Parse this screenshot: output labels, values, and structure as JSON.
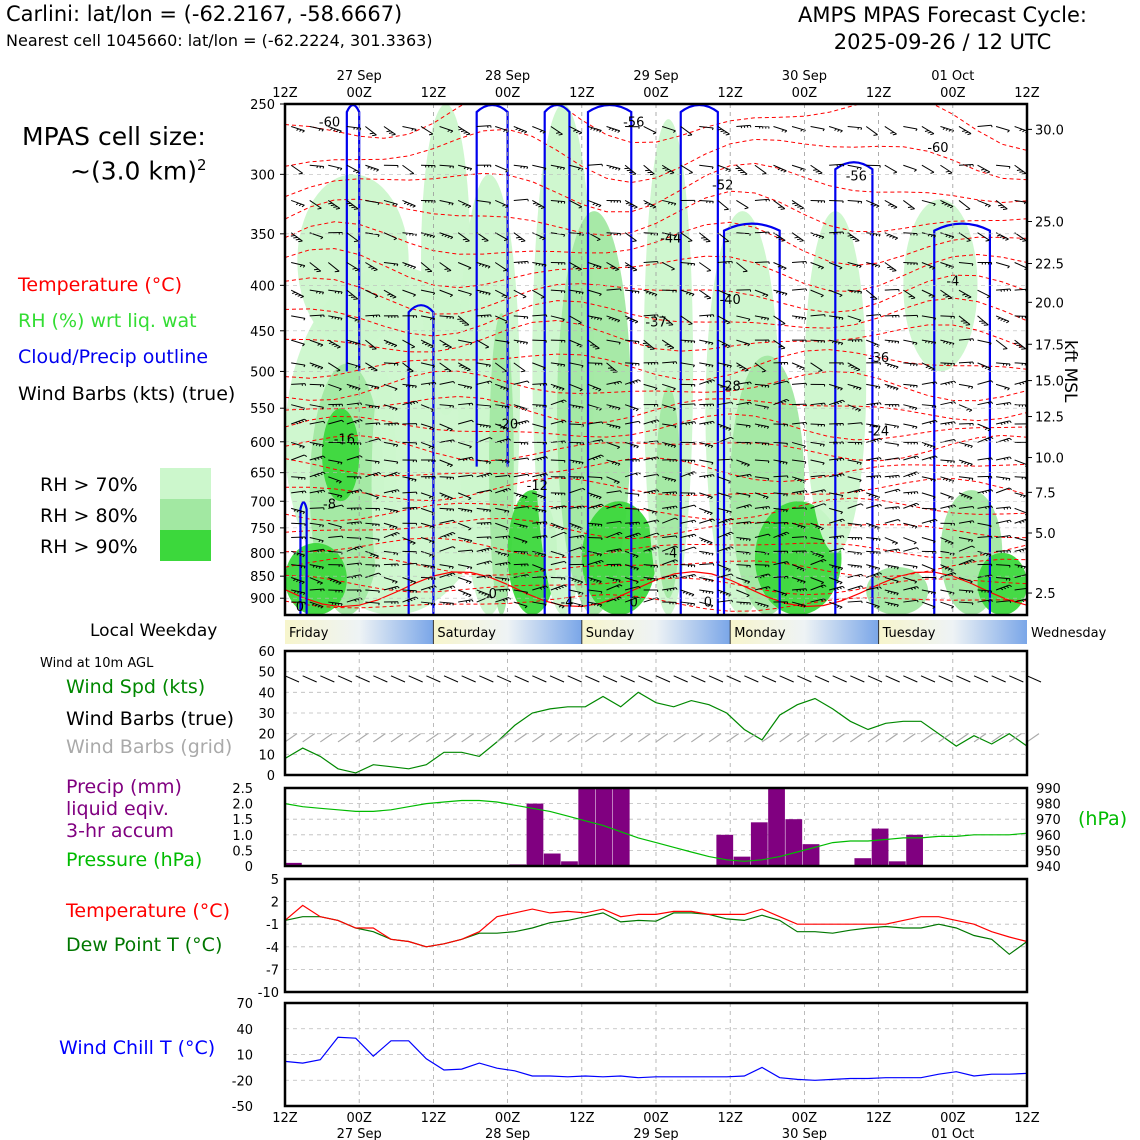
{
  "header": {
    "station": "Carlini: lat/lon = (-62.2167, -58.6667)",
    "nearest": "Nearest cell 1045660: lat/lon = (-62.2224, 301.3363)",
    "model_line1": "AMPS MPAS Forecast Cycle:",
    "model_line2": "2025-09-26 / 12 UTC"
  },
  "cell_size": {
    "line1": "MPAS cell size:",
    "line2": "~(3.0 km)",
    "sup": "2"
  },
  "legend": {
    "temperature": "Temperature (°C)",
    "rh": "RH (%) wrt liq. wat",
    "cloud": "Cloud/Precip outline",
    "barbs": "Wind Barbs (kts) (true)",
    "rh70": "RH > 70%",
    "rh80": "RH > 80%",
    "rh90": "RH > 90%"
  },
  "colors": {
    "rh70": "#ccf7cc",
    "rh80": "#a2e8a2",
    "rh90": "#3cd83c",
    "temp": "#ff0000",
    "cloud": "#0000ee",
    "rh_text": "#33dd33",
    "wind_spd": "#008800",
    "precip": "#800080",
    "pressure": "#00bb00",
    "dewpt": "#007700",
    "windchill": "#0000ff",
    "grid_barbs": "#aaaaaa"
  },
  "weekday": {
    "label": "Local Weekday",
    "days": [
      "Friday",
      "Saturday",
      "Sunday",
      "Monday",
      "Tuesday",
      "Wednesday"
    ]
  },
  "panel_labels": {
    "wind10m": "Wind at 10m AGL",
    "wind_spd": "Wind Spd (kts)",
    "wind_barbs_true": "Wind Barbs (true)",
    "wind_barbs_grid": "Wind Barbs (grid)",
    "precip1": "Precip (mm)",
    "precip2": "liquid eqiv.",
    "precip3": "3-hr accum",
    "pressure": "Pressure (hPa)",
    "pressure_unit": "(hPa)",
    "temp": "Temperature (°C)",
    "dewpt": "Dew Point T (°C)",
    "windchill": "Wind Chill T (°C)",
    "kft": "kft MSL"
  },
  "chart_data": {
    "type": "meteogram",
    "time_ticks": [
      "12Z",
      "00Z",
      "12Z",
      "00Z",
      "12Z",
      "00Z",
      "12Z",
      "00Z",
      "12Z",
      "00Z",
      "12Z"
    ],
    "date_labels": [
      "27 Sep",
      "28 Sep",
      "29 Sep",
      "30 Sep",
      "01 Oct"
    ],
    "cross_section": {
      "pressure_ticks": [
        "250",
        "300",
        "350",
        "400",
        "450",
        "500",
        "550",
        "600",
        "650",
        "700",
        "750",
        "800",
        "850",
        "900"
      ],
      "pressure_values": [
        250,
        300,
        350,
        400,
        450,
        500,
        550,
        600,
        650,
        700,
        750,
        800,
        850,
        900
      ],
      "ylim_hpa": [
        940,
        250
      ],
      "kft_ticks": [
        "30.0",
        "25.0",
        "22.5",
        "20.0",
        "17.5",
        "15.0",
        "12.5",
        "10.0",
        "7.5",
        "5.0",
        "2.5"
      ],
      "kft_pressures": [
        267,
        339,
        378,
        418,
        466,
        512,
        562,
        625,
        684,
        760,
        888
      ],
      "temp_labels": [
        {
          "text": "-60",
          "t": 6,
          "p": 265
        },
        {
          "text": "-56",
          "t": 47,
          "p": 265
        },
        {
          "text": "-52",
          "t": 59,
          "p": 312
        },
        {
          "text": "-44",
          "t": 52,
          "p": 358
        },
        {
          "text": "-40",
          "t": 60,
          "p": 420
        },
        {
          "text": "-37",
          "t": 50,
          "p": 445
        },
        {
          "text": "-36",
          "t": 80,
          "p": 488
        },
        {
          "text": "-28",
          "t": 60,
          "p": 525
        },
        {
          "text": "-24",
          "t": 80,
          "p": 590
        },
        {
          "text": "-20",
          "t": 30,
          "p": 580
        },
        {
          "text": "-16",
          "t": 8,
          "p": 603
        },
        {
          "text": "-12",
          "t": 34,
          "p": 680
        },
        {
          "text": "-8",
          "t": 6,
          "p": 713
        },
        {
          "text": "-4",
          "t": 52,
          "p": 810
        },
        {
          "text": "-56",
          "t": 77,
          "p": 305
        },
        {
          "text": "-60",
          "t": 88,
          "p": 283
        },
        {
          "text": "-4",
          "t": 90,
          "p": 400
        },
        {
          "text": "0",
          "t": 2,
          "p": 930
        },
        {
          "text": "0",
          "t": 28,
          "p": 900
        },
        {
          "text": "-4",
          "t": 38,
          "p": 920
        },
        {
          "text": "0",
          "t": 47,
          "p": 920
        },
        {
          "text": "0",
          "t": 57,
          "p": 920
        }
      ]
    },
    "wind10m": {
      "ylim": [
        0,
        60
      ],
      "yticks": [
        "0",
        "10",
        "20",
        "30",
        "40",
        "50",
        "60"
      ],
      "speed": [
        8,
        13,
        9,
        3,
        1,
        5,
        4,
        3,
        5,
        11,
        11,
        9,
        16,
        24,
        30,
        32,
        33,
        33,
        38,
        33,
        40,
        35,
        33,
        36,
        34,
        30,
        22,
        17,
        29,
        34,
        37,
        32,
        26,
        22,
        25,
        26,
        26,
        20,
        14,
        19,
        15,
        20,
        14
      ]
    },
    "precip": {
      "ylim": [
        0,
        2.5
      ],
      "yticks": [
        "0",
        "0.5",
        "1.0",
        "1.5",
        "2.0",
        "2.5"
      ],
      "values": [
        0.1,
        0,
        0,
        0,
        0,
        0,
        0,
        0,
        0,
        0,
        0,
        0,
        0,
        0.05,
        2.0,
        0.4,
        0.15,
        2.5,
        2.5,
        2.5,
        0,
        0,
        0,
        0,
        0,
        1.0,
        0.3,
        1.4,
        2.5,
        1.5,
        0.7,
        0,
        0,
        0.25,
        1.2,
        0.15,
        1.0,
        0,
        0,
        0,
        0,
        0,
        0
      ]
    },
    "pressure": {
      "ylim": [
        940,
        990
      ],
      "yticks": [
        "940",
        "950",
        "960",
        "970",
        "980",
        "990"
      ],
      "values": [
        980,
        978,
        977,
        976,
        975,
        975,
        976,
        978,
        980,
        981,
        982,
        982,
        981,
        979,
        977,
        975,
        972,
        969,
        966,
        962,
        958,
        955,
        952,
        949,
        946,
        944,
        943,
        944,
        946,
        949,
        952,
        955,
        956,
        956,
        957,
        958,
        958,
        959,
        959,
        960,
        960,
        960,
        961
      ]
    },
    "temperature": {
      "ylim": [
        -10,
        5
      ],
      "yticks": [
        "5",
        "2",
        "-1",
        "-4",
        "-7",
        "-10"
      ],
      "temp": [
        -0.5,
        1.5,
        0,
        -0.5,
        -1.5,
        -1.5,
        -3,
        -3.3,
        -4,
        -3.6,
        -3,
        -2,
        0,
        0.5,
        1,
        0.5,
        0.7,
        0.5,
        1,
        0,
        0.3,
        0.3,
        0.7,
        0.7,
        0.3,
        0.3,
        0.3,
        1,
        0,
        -1,
        -1,
        -1,
        -1,
        -1,
        -1,
        -0.5,
        0,
        0,
        -0.5,
        -1,
        -2,
        -2.7,
        -3.3
      ],
      "dewpt": [
        -0.5,
        0,
        0,
        -0.5,
        -1.5,
        -2,
        -3,
        -3.3,
        -4,
        -3.6,
        -3,
        -2.2,
        -2.2,
        -2,
        -1.5,
        -0.8,
        -0.5,
        0,
        0.5,
        -0.7,
        -0.5,
        -0.6,
        0.5,
        0.5,
        0.3,
        -0.3,
        -0.5,
        0.2,
        -0.5,
        -2,
        -2,
        -2.2,
        -1.8,
        -1.5,
        -1.3,
        -1.5,
        -1.5,
        -1,
        -1.5,
        -2.5,
        -3,
        -5,
        -3.3
      ]
    },
    "windchill": {
      "ylim": [
        -50,
        70
      ],
      "yticks": [
        "70",
        "40",
        "10",
        "-20",
        "-50"
      ],
      "values": [
        2,
        0,
        4,
        30,
        29,
        8,
        26,
        26,
        5,
        -8,
        -7,
        0,
        -6,
        -9,
        -15,
        -15,
        -16,
        -15,
        -16,
        -15,
        -17,
        -16,
        -16,
        -16,
        -16,
        -16,
        -15,
        -5,
        -17,
        -19,
        -20,
        -19,
        -18,
        -18,
        -17,
        -17,
        -17,
        -13,
        -10,
        -15,
        -13,
        -13,
        -12
      ]
    }
  }
}
